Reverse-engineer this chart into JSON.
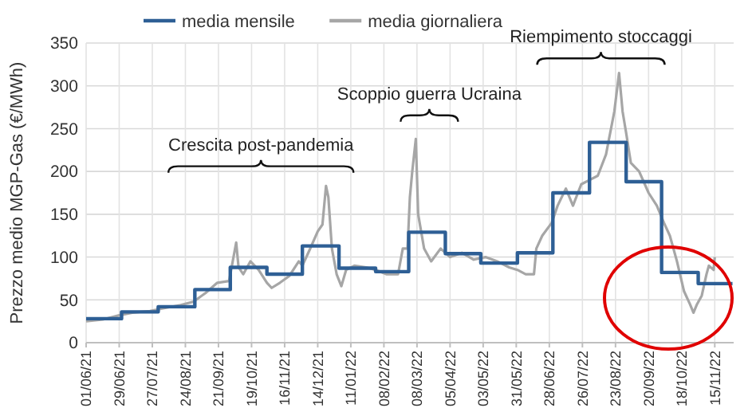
{
  "chart_data": {
    "type": "line",
    "ylabel": "Prezzo medio MGP-Gas (€/MWh)",
    "xlim": [
      "2021-06-01",
      "2022-12-01"
    ],
    "ylim": [
      0,
      350
    ],
    "yticks": [
      0,
      50,
      100,
      150,
      200,
      250,
      300,
      350
    ],
    "xticks": [
      {
        "value": "2021-06-01",
        "label": "01/06/21"
      },
      {
        "value": "2021-06-29",
        "label": "29/06/21"
      },
      {
        "value": "2021-07-27",
        "label": "27/07/21"
      },
      {
        "value": "2021-08-24",
        "label": "24/08/21"
      },
      {
        "value": "2021-09-21",
        "label": "21/09/21"
      },
      {
        "value": "2021-10-19",
        "label": "19/10/21"
      },
      {
        "value": "2021-11-16",
        "label": "16/11/21"
      },
      {
        "value": "2021-12-14",
        "label": "14/12/21"
      },
      {
        "value": "2022-01-11",
        "label": "11/01/22"
      },
      {
        "value": "2022-02-08",
        "label": "08/02/22"
      },
      {
        "value": "2022-03-08",
        "label": "08/03/22"
      },
      {
        "value": "2022-04-05",
        "label": "05/04/22"
      },
      {
        "value": "2022-05-03",
        "label": "03/05/22"
      },
      {
        "value": "2022-05-31",
        "label": "31/05/22"
      },
      {
        "value": "2022-06-28",
        "label": "28/06/22"
      },
      {
        "value": "2022-07-26",
        "label": "26/07/22"
      },
      {
        "value": "2022-08-23",
        "label": "23/08/22"
      },
      {
        "value": "2022-09-20",
        "label": "20/09/22"
      },
      {
        "value": "2022-10-18",
        "label": "18/10/22"
      },
      {
        "value": "2022-11-15",
        "label": "15/11/22"
      }
    ],
    "grid": true,
    "legend": "top",
    "marker": "none",
    "annotations": [
      "Crescita post-pandemia",
      "Scoppio guerra Ucraina",
      "Riempimento stoccaggi"
    ],
    "series": [
      {
        "name": "media mensile",
        "type": "step",
        "color": "#2e5f95",
        "x": [
          "2021-06-01",
          "2021-07-01",
          "2021-08-01",
          "2021-09-01",
          "2021-10-01",
          "2021-11-01",
          "2021-12-01",
          "2022-01-01",
          "2022-02-01",
          "2022-03-01",
          "2022-04-01",
          "2022-05-01",
          "2022-06-01",
          "2022-07-01",
          "2022-08-01",
          "2022-09-01",
          "2022-10-01",
          "2022-11-01",
          "2022-11-30"
        ],
        "values": [
          28,
          36,
          42,
          62,
          88,
          80,
          113,
          87,
          83,
          129,
          104,
          93,
          105,
          175,
          234,
          188,
          82,
          69,
          69
        ]
      },
      {
        "name": "media giornaliera",
        "type": "line",
        "color": "#a6a6a6",
        "x": [
          "2021-06-01",
          "2021-06-15",
          "2021-06-29",
          "2021-07-10",
          "2021-07-25",
          "2021-08-05",
          "2021-08-20",
          "2021-08-31",
          "2021-09-10",
          "2021-09-20",
          "2021-09-30",
          "2021-10-06",
          "2021-10-08",
          "2021-10-12",
          "2021-10-18",
          "2021-10-25",
          "2021-11-01",
          "2021-11-05",
          "2021-11-12",
          "2021-11-20",
          "2021-11-28",
          "2021-12-01",
          "2021-12-07",
          "2021-12-14",
          "2021-12-18",
          "2021-12-21",
          "2021-12-23",
          "2021-12-26",
          "2021-12-30",
          "2022-01-03",
          "2022-01-07",
          "2022-01-14",
          "2022-01-24",
          "2022-02-01",
          "2022-02-10",
          "2022-02-20",
          "2022-02-24",
          "2022-02-28",
          "2022-03-02",
          "2022-03-04",
          "2022-03-07",
          "2022-03-09",
          "2022-03-14",
          "2022-03-20",
          "2022-03-28",
          "2022-04-05",
          "2022-04-15",
          "2022-04-25",
          "2022-05-05",
          "2022-05-15",
          "2022-05-25",
          "2022-06-01",
          "2022-06-08",
          "2022-06-15",
          "2022-06-17",
          "2022-06-22",
          "2022-06-30",
          "2022-07-05",
          "2022-07-12",
          "2022-07-18",
          "2022-07-25",
          "2022-08-01",
          "2022-08-08",
          "2022-08-15",
          "2022-08-22",
          "2022-08-26",
          "2022-08-29",
          "2022-09-01",
          "2022-09-05",
          "2022-09-12",
          "2022-09-20",
          "2022-09-27",
          "2022-10-03",
          "2022-10-08",
          "2022-10-14",
          "2022-10-20",
          "2022-10-25",
          "2022-10-28",
          "2022-10-31",
          "2022-11-04",
          "2022-11-08",
          "2022-11-10",
          "2022-11-14",
          "2022-11-15"
        ],
        "values": [
          25,
          27,
          32,
          35,
          37,
          40,
          44,
          48,
          58,
          70,
          72,
          117,
          88,
          80,
          95,
          85,
          70,
          64,
          70,
          78,
          95,
          90,
          108,
          130,
          138,
          183,
          170,
          110,
          80,
          66,
          85,
          90,
          88,
          85,
          80,
          80,
          110,
          110,
          170,
          200,
          238,
          150,
          110,
          95,
          110,
          100,
          105,
          97,
          100,
          95,
          88,
          85,
          80,
          80,
          110,
          125,
          140,
          160,
          180,
          160,
          185,
          190,
          195,
          220,
          270,
          315,
          270,
          245,
          210,
          200,
          175,
          160,
          140,
          125,
          95,
          60,
          45,
          35,
          45,
          55,
          80,
          90,
          85,
          100
        ]
      }
    ]
  }
}
